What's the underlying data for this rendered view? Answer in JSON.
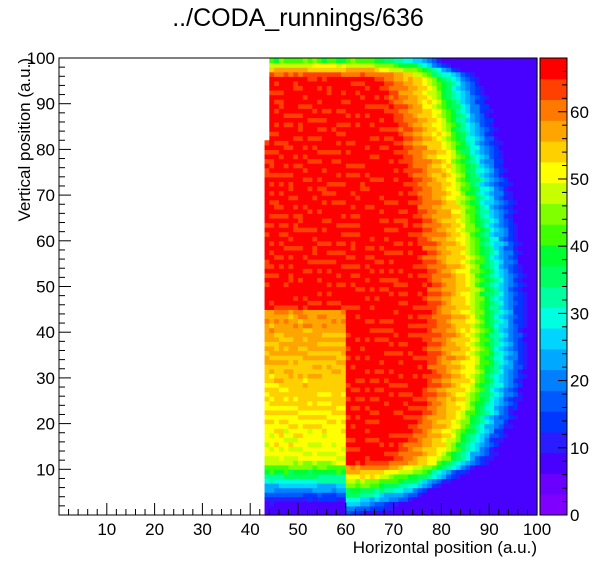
{
  "chart_data": {
    "type": "heatmap",
    "title": "../CODA_runnings/636",
    "xlabel": "Horizontal position (a.u.)",
    "ylabel": "Vertical position (a.u.)",
    "xlim": [
      0,
      100
    ],
    "ylim": [
      0,
      100
    ],
    "x_ticks": [
      "10",
      "20",
      "30",
      "40",
      "50",
      "60",
      "70",
      "80",
      "90",
      "100"
    ],
    "y_ticks": [
      "10",
      "20",
      "30",
      "40",
      "50",
      "60",
      "70",
      "80",
      "90",
      "100"
    ],
    "z_range": [
      0,
      68
    ],
    "z_ticks": [
      "0",
      "10",
      "20",
      "30",
      "40",
      "50",
      "60"
    ],
    "palette": [
      "#8000ff",
      "#6a00ff",
      "#4800ff",
      "#2a1cff",
      "#0038ff",
      "#0058ff",
      "#0080ff",
      "#00a8ff",
      "#00d4ff",
      "#00ffe0",
      "#00ffa0",
      "#00ff60",
      "#00ff30",
      "#40ff00",
      "#80ff00",
      "#c8ff00",
      "#ffff00",
      "#ffd000",
      "#ffa500",
      "#ff7800",
      "#ff4000",
      "#ff0000"
    ],
    "empty_region_x": [
      0,
      43
    ],
    "grid": false,
    "legend": "color-bar-right"
  }
}
